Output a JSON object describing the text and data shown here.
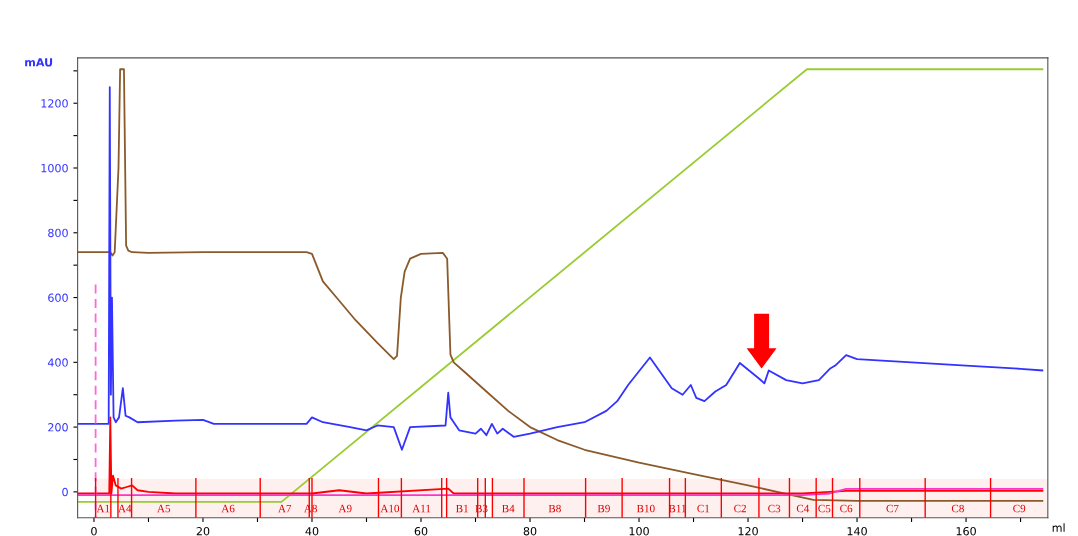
{
  "chart_data": {
    "type": "line",
    "xlabel": "ml",
    "ylabel": "mAU",
    "xlim": [
      -3,
      175
    ],
    "ylim": [
      -80,
      1340
    ],
    "xticks": [
      0,
      {
        "value": 10,
        "label": null
      },
      20,
      {
        "value": 30,
        "label": null
      },
      40,
      {
        "value": 50,
        "label": null
      },
      60,
      {
        "value": 70,
        "label": null
      },
      80,
      {
        "value": 90,
        "label": null
      },
      100,
      {
        "value": 110,
        "label": null
      },
      120,
      {
        "value": 130,
        "label": null
      },
      140,
      {
        "value": 150,
        "label": null
      },
      160,
      {
        "value": 170,
        "label": null
      }
    ],
    "yticks": [
      0,
      {
        "value": 100,
        "label": null
      },
      200,
      {
        "value": 300,
        "label": null
      },
      400,
      {
        "value": 500,
        "label": null
      },
      600,
      {
        "value": 700,
        "label": null
      },
      800,
      {
        "value": 900,
        "label": null
      },
      1000,
      {
        "value": 1100,
        "label": null
      },
      1200,
      {
        "value": 1300,
        "label": null
      }
    ],
    "grid": false,
    "legend": false,
    "marker": "none",
    "series": [
      {
        "color": "#99cc33",
        "x": [
          -3,
          34.4,
          130.8,
          174
        ],
        "values": [
          -31,
          -31,
          1305,
          1305
        ]
      },
      {
        "color": "#8b5a2b",
        "x": [
          -3,
          3.0,
          3.4,
          3.8,
          4.5,
          4.8,
          5.5,
          5.9,
          6.3,
          7,
          10,
          20,
          39,
          40,
          42,
          45,
          48,
          52,
          55,
          55.6,
          56.3,
          57,
          58,
          60,
          64,
          64.8,
          65.4,
          66,
          68,
          72,
          76,
          80,
          85,
          90,
          100,
          110,
          120,
          128,
          132,
          140,
          174
        ],
        "values": [
          740,
          740,
          730,
          740,
          1000,
          1305,
          1305,
          760,
          745,
          740,
          738,
          740,
          740,
          735,
          650,
          590,
          530,
          460,
          410,
          420,
          600,
          680,
          720,
          735,
          738,
          720,
          424,
          400,
          370,
          310,
          250,
          200,
          160,
          130,
          90,
          55,
          20,
          -10,
          -25,
          -28,
          -28
        ]
      },
      {
        "color": "#3333ff",
        "x": [
          -3,
          2.7,
          2.9,
          3.1,
          3.3,
          3.6,
          4.0,
          4.6,
          5.3,
          5.8,
          6.5,
          8,
          15,
          20,
          22,
          39,
          40,
          42,
          47,
          50,
          52,
          55,
          56.5,
          58,
          64.5,
          65.0,
          65.4,
          66,
          67,
          70,
          71,
          72,
          73,
          74,
          75,
          77,
          80,
          85,
          90,
          94,
          96,
          98,
          102,
          106,
          108,
          109.5,
          110.5,
          112,
          114,
          116,
          118.5,
          122,
          123,
          123.8,
          127,
          130,
          133,
          135,
          136,
          138,
          140,
          150,
          160,
          170,
          174
        ],
        "values": [
          210,
          210,
          1250,
          300,
          600,
          230,
          215,
          230,
          320,
          235,
          230,
          215,
          220,
          222,
          210,
          210,
          230,
          215,
          200,
          190,
          205,
          200,
          130,
          200,
          205,
          306,
          230,
          215,
          190,
          180,
          195,
          175,
          210,
          180,
          195,
          170,
          180,
          200,
          215,
          250,
          280,
          330,
          415,
          320,
          300,
          330,
          290,
          280,
          310,
          330,
          398,
          350,
          335,
          375,
          345,
          335,
          345,
          380,
          390,
          422,
          410,
          400,
          390,
          380,
          375
        ]
      },
      {
        "color": "#ff0000",
        "x": [
          -3,
          2.8,
          3.0,
          3.2,
          3.5,
          4,
          5,
          6,
          7,
          8,
          10,
          15,
          40,
          45,
          50,
          65,
          66,
          130,
          135,
          138,
          174
        ],
        "values": [
          -5,
          -5,
          230,
          -5,
          50,
          20,
          10,
          15,
          20,
          5,
          0,
          -5,
          -5,
          5,
          -5,
          10,
          -5,
          -5,
          0,
          3,
          3
        ]
      },
      {
        "color": "#ff33cc",
        "x": [
          -3,
          130,
          135,
          138,
          174
        ],
        "values": [
          -10,
          -10,
          -5,
          9,
          9
        ]
      },
      {
        "color": "#ff66dd",
        "line_style": "dashed",
        "x": [
          0.3,
          0.3
        ],
        "values": [
          640,
          -80
        ]
      }
    ],
    "ref_lines": [
      {
        "axis": "x",
        "value": 0.3,
        "color": "#ff0000"
      },
      {
        "axis": "x",
        "value": 3.1,
        "color": "#ff0000"
      },
      {
        "axis": "x",
        "value": 4.4,
        "color": "#ff0000"
      },
      {
        "axis": "x",
        "value": 6.9,
        "color": "#ff0000"
      },
      {
        "axis": "x",
        "value": 18.7,
        "color": "#ff0000"
      },
      {
        "axis": "x",
        "value": 30.5,
        "color": "#ff0000"
      },
      {
        "axis": "x",
        "value": 39.5,
        "color": "#ff0000"
      },
      {
        "axis": "x",
        "value": 40,
        "color": "#ff0000"
      },
      {
        "axis": "x",
        "value": 52.2,
        "color": "#ff0000"
      },
      {
        "axis": "x",
        "value": 56.4,
        "color": "#ff0000"
      },
      {
        "axis": "x",
        "value": 63.8,
        "color": "#ff0000"
      },
      {
        "axis": "x",
        "value": 64.7,
        "color": "#ff0000"
      },
      {
        "axis": "x",
        "value": 70.4,
        "color": "#ff0000"
      },
      {
        "axis": "x",
        "value": 71.8,
        "color": "#ff0000"
      },
      {
        "axis": "x",
        "value": 73.1,
        "color": "#ff0000"
      },
      {
        "axis": "x",
        "value": 78.9,
        "color": "#ff0000"
      },
      {
        "axis": "x",
        "value": 90.2,
        "color": "#ff0000"
      },
      {
        "axis": "x",
        "value": 96.9,
        "color": "#ff0000"
      },
      {
        "axis": "x",
        "value": 105.6,
        "color": "#ff0000"
      },
      {
        "axis": "x",
        "value": 108.5,
        "color": "#ff0000"
      },
      {
        "axis": "x",
        "value": 115.1,
        "color": "#ff0000"
      },
      {
        "axis": "x",
        "value": 122,
        "color": "#ff0000"
      },
      {
        "axis": "x",
        "value": 127.6,
        "color": "#ff0000"
      },
      {
        "axis": "x",
        "value": 132.5,
        "color": "#ff0000"
      },
      {
        "axis": "x",
        "value": 135.5,
        "color": "#ff0000"
      },
      {
        "axis": "x",
        "value": 140.5,
        "color": "#ff0000"
      },
      {
        "axis": "x",
        "value": 152.5,
        "color": "#ff0000"
      },
      {
        "axis": "x",
        "value": 164.5,
        "color": "#ff0000"
      }
    ],
    "bands": [
      {
        "axis": "x",
        "from": 0.3,
        "to": 3.1,
        "label": "A1",
        "color": "#ff0000"
      },
      {
        "axis": "x",
        "from": 4.4,
        "to": 6.9,
        "label": "A4",
        "color": "#ff0000"
      },
      {
        "axis": "x",
        "from": 6.9,
        "to": 18.7,
        "label": "A5",
        "color": "#ff0000"
      },
      {
        "axis": "x",
        "from": 18.7,
        "to": 30.5,
        "label": "A6",
        "color": "#ff0000"
      },
      {
        "axis": "x",
        "from": 30.5,
        "to": 39.5,
        "label": "A7",
        "color": "#ff0000"
      },
      {
        "axis": "x",
        "from": 39.5,
        "to": 40,
        "label": "A8",
        "color": "#ff0000"
      },
      {
        "axis": "x",
        "from": 40,
        "to": 52.2,
        "label": "A9",
        "color": "#ff0000"
      },
      {
        "axis": "x",
        "from": 52.2,
        "to": 56.4,
        "label": "A10",
        "color": "#ff0000"
      },
      {
        "axis": "x",
        "from": 56.4,
        "to": 63.8,
        "label": "A11",
        "color": "#ff0000"
      },
      {
        "axis": "x",
        "from": 64.7,
        "to": 70.4,
        "label": "B1",
        "color": "#ff0000"
      },
      {
        "axis": "x",
        "from": 70.4,
        "to": 71.8,
        "label": "B3",
        "color": "#ff0000"
      },
      {
        "axis": "x",
        "from": 73.1,
        "to": 78.9,
        "label": "B4",
        "color": "#ff0000"
      },
      {
        "axis": "x",
        "from": 78.9,
        "to": 90.2,
        "label": "B8",
        "color": "#ff0000"
      },
      {
        "axis": "x",
        "from": 90.2,
        "to": 96.9,
        "label": "B9",
        "color": "#ff0000"
      },
      {
        "axis": "x",
        "from": 96.9,
        "to": 105.6,
        "label": "B10",
        "color": "#ff0000"
      },
      {
        "axis": "x",
        "from": 105.6,
        "to": 108.5,
        "label": "B11",
        "color": "#ff0000"
      },
      {
        "axis": "x",
        "from": 108.5,
        "to": 115.1,
        "label": "C1",
        "color": "#ff0000"
      },
      {
        "axis": "x",
        "from": 115.1,
        "to": 122,
        "label": "C2",
        "color": "#ff0000"
      },
      {
        "axis": "x",
        "from": 122,
        "to": 127.6,
        "label": "C3",
        "color": "#ff0000"
      },
      {
        "axis": "x",
        "from": 127.6,
        "to": 132.5,
        "label": "C4",
        "color": "#ff0000"
      },
      {
        "axis": "x",
        "from": 132.5,
        "to": 135.5,
        "label": "C5",
        "color": "#ff0000"
      },
      {
        "axis": "x",
        "from": 135.5,
        "to": 140.5,
        "label": "C6",
        "color": "#ff0000"
      },
      {
        "axis": "x",
        "from": 140.5,
        "to": 152.5,
        "label": "C7",
        "color": "#ff0000"
      },
      {
        "axis": "x",
        "from": 152.5,
        "to": 164.5,
        "label": "C8",
        "color": "#ff0000"
      },
      {
        "axis": "x",
        "from": 164.5,
        "to": 175,
        "label": "C9",
        "color": "#ff0000"
      }
    ]
  }
}
